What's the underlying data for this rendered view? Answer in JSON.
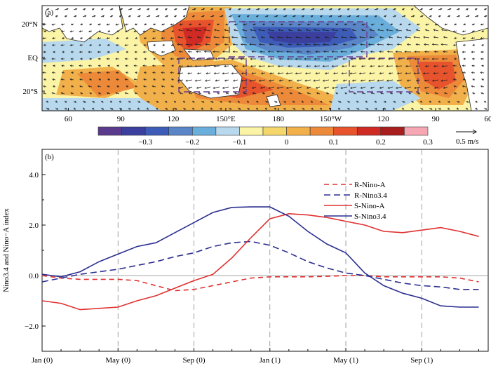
{
  "chart_data": [
    {
      "type": "heatmap",
      "panel_label": "(a)",
      "x_ticks": [
        "60",
        "90",
        "120",
        "150°E",
        "180",
        "150°W",
        "120",
        "90",
        "60"
      ],
      "y_ticks": [
        "20°N",
        "EQ",
        "20°S"
      ],
      "colorbar": {
        "labels": [
          "−0.3",
          "−0.2",
          "−0.1",
          "0",
          "0.1",
          "0.2",
          "0.3"
        ],
        "colors": [
          "#5a3a8c",
          "#3b3f9e",
          "#3d5cb8",
          "#5a86c8",
          "#6aaedc",
          "#b8d8ee",
          "#fbf4a6",
          "#f5d66a",
          "#f1b04a",
          "#ec8a3a",
          "#e6532c",
          "#cf2a23",
          "#a81e1e",
          "#f7a7b4"
        ]
      },
      "vector_scale_label": "0.5 m/s",
      "colors": {
        "land": "#ffffff",
        "coast": "#222222",
        "box": "#6a3f8f",
        "arrow": "#222222"
      }
    },
    {
      "type": "line",
      "panel_label": "(b)",
      "ylabel": "Nino3.4 and Nino−A index",
      "ylim": [
        -3,
        5
      ],
      "y_ticks": [
        -2,
        0,
        2,
        4
      ],
      "y_tick_labels": [
        "−2.0",
        "0.0",
        "2.0",
        "4.0"
      ],
      "x_tick_labels": [
        "Jan (0)",
        "May (0)",
        "Sep (0)",
        "Jan (1)",
        "May (1)",
        "Sep (1)"
      ],
      "x_tick_months": [
        0,
        4,
        8,
        12,
        16,
        20
      ],
      "xlim": [
        0,
        23.5
      ],
      "series": [
        {
          "name": "R-Nino-A",
          "color": "#e03030",
          "dash": "7,5",
          "values": [
            0.0,
            -0.1,
            -0.15,
            -0.15,
            -0.15,
            -0.2,
            -0.4,
            -0.6,
            -0.55,
            -0.4,
            -0.25,
            -0.1,
            -0.05,
            -0.05,
            -0.05,
            -0.03,
            0.0,
            0.0,
            -0.05,
            -0.05,
            -0.05,
            -0.05,
            -0.1,
            -0.25
          ]
        },
        {
          "name": "R-Nino3.4",
          "color": "#2b2f8f",
          "dash": "9,5",
          "values": [
            -0.25,
            -0.1,
            0.05,
            0.15,
            0.25,
            0.4,
            0.55,
            0.75,
            0.9,
            1.15,
            1.3,
            1.35,
            1.2,
            0.9,
            0.55,
            0.3,
            0.1,
            0.0,
            -0.15,
            -0.3,
            -0.4,
            -0.45,
            -0.55,
            -0.55
          ]
        },
        {
          "name": "S-Nino-A",
          "color": "#e03030",
          "dash": "",
          "values": [
            -1.0,
            -1.1,
            -1.35,
            -1.3,
            -1.25,
            -1.0,
            -0.8,
            -0.5,
            -0.2,
            0.05,
            0.7,
            1.5,
            2.25,
            2.45,
            2.4,
            2.3,
            2.15,
            2.0,
            1.75,
            1.7,
            1.8,
            1.9,
            1.75,
            1.55
          ]
        },
        {
          "name": "S-Nino3.4",
          "color": "#2b2f8f",
          "dash": "",
          "values": [
            0.05,
            -0.05,
            0.15,
            0.55,
            0.85,
            1.15,
            1.3,
            1.7,
            2.1,
            2.5,
            2.7,
            2.72,
            2.72,
            2.35,
            1.75,
            1.25,
            0.9,
            0.1,
            -0.4,
            -0.7,
            -0.9,
            -1.2,
            -1.25,
            -1.25
          ]
        }
      ]
    }
  ]
}
